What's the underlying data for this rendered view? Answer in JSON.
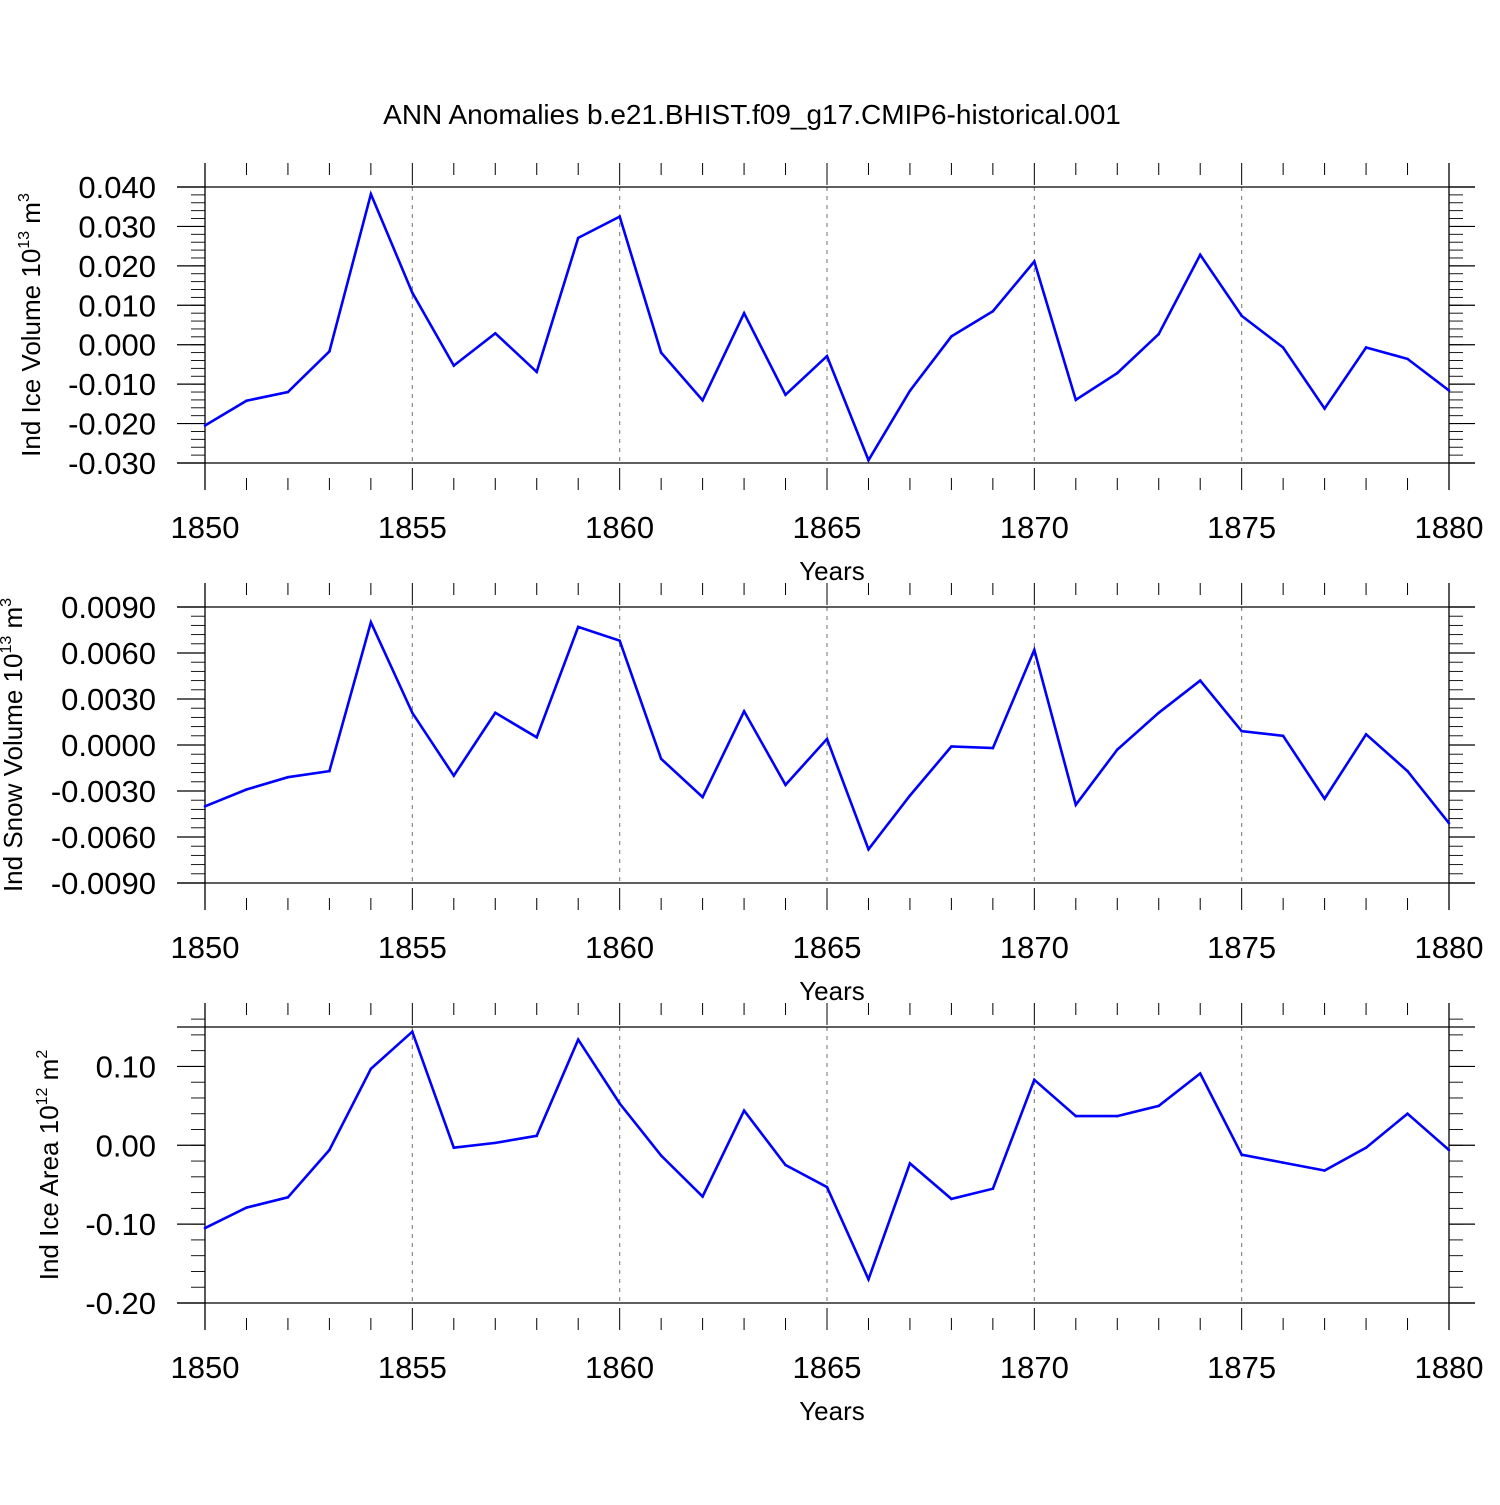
{
  "colors": {
    "series": "#0000ff",
    "axis": "#000000",
    "gridline": "#888888"
  },
  "chart_data": [
    {
      "type": "line",
      "title": "ANN Anomalies b.e21.BHIST.f09_g17.CMIP6-historical.001",
      "ylabel": {
        "main": "Ind Ice Volume 10",
        "exp": "13",
        "unit": " m",
        "unit_exp": "3"
      },
      "xlabel": "Years",
      "xlim": [
        1850,
        1880
      ],
      "ylim": [
        -0.03,
        0.04
      ],
      "yticks": [
        -0.03,
        -0.02,
        -0.01,
        0.0,
        0.01,
        0.02,
        0.03,
        0.04
      ],
      "ytick_labels": [
        "-0.030",
        "-0.020",
        "-0.010",
        "0.000",
        "0.010",
        "0.020",
        "0.030",
        "0.040"
      ],
      "xticks": [
        1850,
        1855,
        1860,
        1865,
        1870,
        1875,
        1880
      ],
      "xtick_labels": [
        "1850",
        "1855",
        "1860",
        "1865",
        "1870",
        "1875",
        "1880"
      ],
      "x": [
        1850,
        1851,
        1852,
        1853,
        1854,
        1855,
        1856,
        1857,
        1858,
        1859,
        1860,
        1861,
        1862,
        1863,
        1864,
        1865,
        1866,
        1867,
        1868,
        1869,
        1870,
        1871,
        1872,
        1873,
        1874,
        1875,
        1876,
        1877,
        1878,
        1879,
        1880
      ],
      "values": [
        -0.0205,
        -0.0142,
        -0.012,
        -0.0017,
        0.0382,
        0.0132,
        -0.0053,
        0.0029,
        -0.0069,
        0.0271,
        0.0325,
        -0.002,
        -0.0141,
        0.008,
        -0.0127,
        -0.0029,
        -0.0293,
        -0.0117,
        0.0021,
        0.0085,
        0.0211,
        -0.014,
        -0.0072,
        0.0027,
        0.0228,
        0.0073,
        -0.0007,
        -0.0162,
        -0.0007,
        -0.0036,
        -0.0116
      ]
    },
    {
      "type": "line",
      "ylabel": {
        "main": "Ind Snow Volume 10",
        "exp": "13",
        "unit": " m",
        "unit_exp": "3"
      },
      "xlabel": "Years",
      "xlim": [
        1850,
        1880
      ],
      "ylim": [
        -0.009,
        0.009
      ],
      "yticks": [
        -0.009,
        -0.006,
        -0.003,
        0.0,
        0.003,
        0.006,
        0.009
      ],
      "ytick_labels": [
        "-0.0090",
        "-0.0060",
        "-0.0030",
        "0.0000",
        "0.0030",
        "0.0060",
        "0.0090"
      ],
      "xticks": [
        1850,
        1855,
        1860,
        1865,
        1870,
        1875,
        1880
      ],
      "xtick_labels": [
        "1850",
        "1855",
        "1860",
        "1865",
        "1870",
        "1875",
        "1880"
      ],
      "x": [
        1850,
        1851,
        1852,
        1853,
        1854,
        1855,
        1856,
        1857,
        1858,
        1859,
        1860,
        1861,
        1862,
        1863,
        1864,
        1865,
        1866,
        1867,
        1868,
        1869,
        1870,
        1871,
        1872,
        1873,
        1874,
        1875,
        1876,
        1877,
        1878,
        1879,
        1880
      ],
      "values": [
        -0.004,
        -0.0029,
        -0.0021,
        -0.0017,
        0.008,
        0.0021,
        -0.002,
        0.0021,
        0.0005,
        0.0077,
        0.0068,
        -0.0009,
        -0.0034,
        0.0022,
        -0.0026,
        0.0004,
        -0.0068,
        -0.0033,
        -0.0001,
        -0.0002,
        0.0062,
        -0.0039,
        -0.0003,
        0.0021,
        0.0042,
        0.0009,
        0.0006,
        -0.0035,
        0.0007,
        -0.0017,
        -0.0051
      ]
    },
    {
      "type": "line",
      "ylabel": {
        "main": "Ind Ice Area 10",
        "exp": "12",
        "unit": " m",
        "unit_exp": "2"
      },
      "xlabel": "Years",
      "xlim": [
        1850,
        1880
      ],
      "ylim": [
        -0.2,
        0.15
      ],
      "yticks": [
        -0.2,
        -0.1,
        0.0,
        0.1
      ],
      "ytick_labels": [
        "-0.20",
        "-0.10",
        "0.00",
        "0.10"
      ],
      "xticks": [
        1850,
        1855,
        1860,
        1865,
        1870,
        1875,
        1880
      ],
      "xtick_labels": [
        "1850",
        "1855",
        "1860",
        "1865",
        "1870",
        "1875",
        "1880"
      ],
      "x": [
        1850,
        1851,
        1852,
        1853,
        1854,
        1855,
        1856,
        1857,
        1858,
        1859,
        1860,
        1861,
        1862,
        1863,
        1864,
        1865,
        1866,
        1867,
        1868,
        1869,
        1870,
        1871,
        1872,
        1873,
        1874,
        1875,
        1876,
        1877,
        1878,
        1879,
        1880
      ],
      "values": [
        -0.105,
        -0.079,
        -0.066,
        -0.006,
        0.097,
        0.144,
        -0.003,
        0.003,
        0.012,
        0.134,
        0.053,
        -0.013,
        -0.065,
        0.044,
        -0.025,
        -0.053,
        -0.17,
        -0.023,
        -0.068,
        -0.055,
        0.083,
        0.037,
        0.037,
        0.05,
        0.091,
        -0.012,
        -0.022,
        -0.032,
        -0.003,
        0.04,
        -0.006
      ]
    }
  ]
}
